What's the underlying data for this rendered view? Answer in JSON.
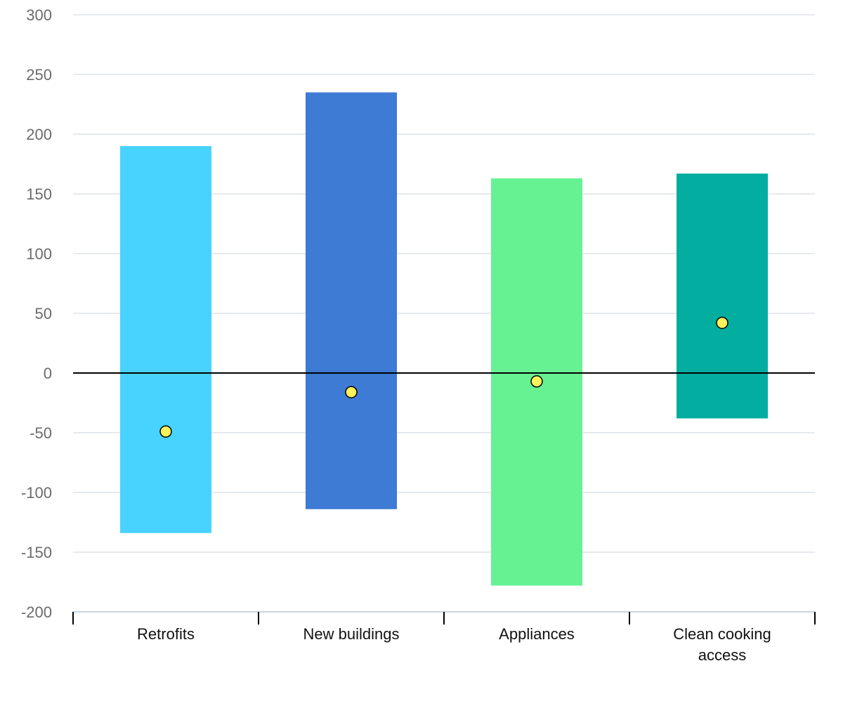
{
  "chart_data": {
    "type": "bar",
    "subtype": "floating-range-with-point",
    "title": "",
    "xlabel": "",
    "ylabel": "",
    "categories": [
      {
        "label_lines": [
          "Retrofits"
        ],
        "low": -134,
        "high": 190,
        "point": -49,
        "color": "#48d3ff"
      },
      {
        "label_lines": [
          "New buildings"
        ],
        "low": -114,
        "high": 235,
        "point": -16,
        "color": "#3d7bd4"
      },
      {
        "label_lines": [
          "Appliances"
        ],
        "low": -178,
        "high": 163,
        "point": -7,
        "color": "#66f292"
      },
      {
        "label_lines": [
          "Clean cooking",
          "access"
        ],
        "low": -38,
        "high": 167,
        "point": 42,
        "color": "#03ada0"
      }
    ],
    "ylim": [
      -200,
      300
    ],
    "yticks": [
      "300",
      "250",
      "200",
      "150",
      "100",
      "50",
      "0",
      "-50",
      "-100",
      "-150",
      "-200"
    ],
    "grid": true,
    "zero_line": true,
    "point_color": "#fdf25a",
    "grid_color": "#dde3e8",
    "legend": "none"
  }
}
